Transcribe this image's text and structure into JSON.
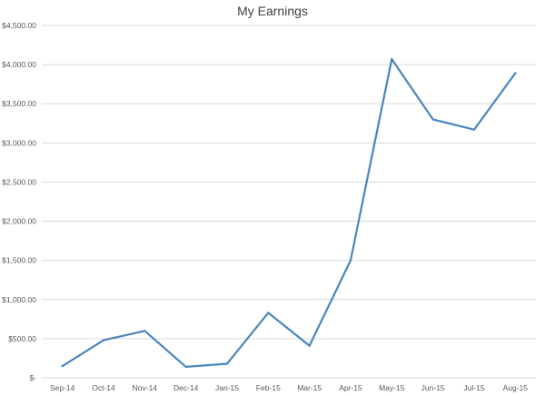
{
  "chart_data": {
    "type": "line",
    "title": "My Earnings",
    "categories": [
      "Sep-14",
      "Oct-14",
      "Nov-14",
      "Dec-14",
      "Jan-15",
      "Feb-15",
      "Mar-15",
      "Apr-15",
      "May-15",
      "Jun-15",
      "Jul-15",
      "Aug-15"
    ],
    "series": [
      {
        "values": [
          150,
          480,
          600,
          140,
          180,
          830,
          410,
          1500,
          4070,
          3300,
          3170,
          3890
        ]
      }
    ],
    "y_tick_labels": [
      "$-",
      "$500.00",
      "$1,000.00",
      "$1,500.00",
      "$2,000.00",
      "$2,500.00",
      "$3,000.00",
      "$3,500.00",
      "$4,000.00",
      "$4,500.00"
    ],
    "ylim": [
      0,
      4500
    ],
    "y_step": 500,
    "grid": true,
    "legend": "none",
    "colors": {
      "line": "#4a86bd",
      "grid": "#d9d9d9",
      "text": "#595959",
      "title": "#404040"
    }
  }
}
